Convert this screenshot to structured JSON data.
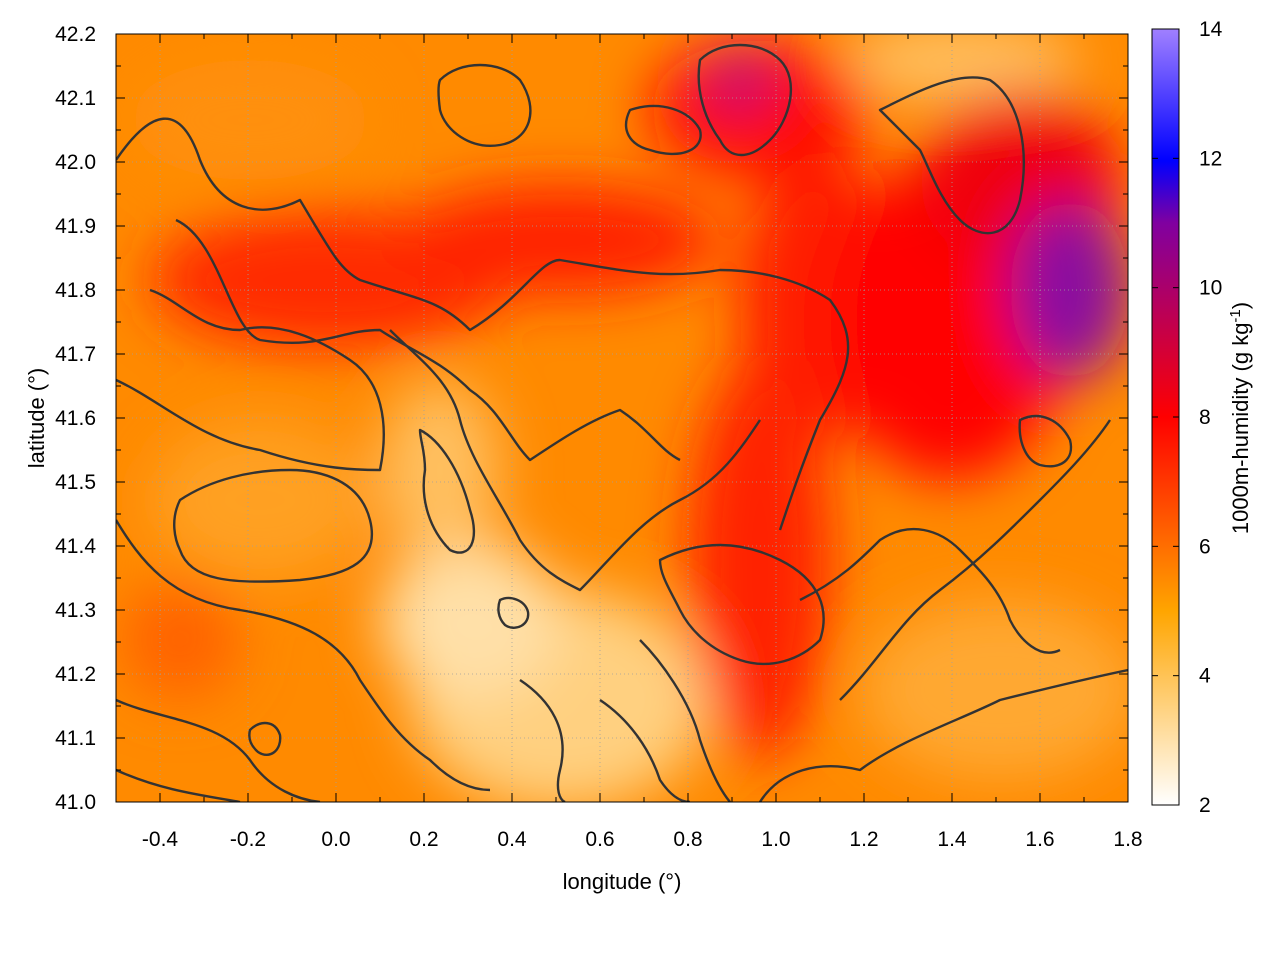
{
  "chart_data": {
    "type": "heatmap",
    "title": "",
    "xlabel": "longitude (°)",
    "ylabel": "latitude (°)",
    "xlim": [
      -0.5,
      1.8
    ],
    "ylim": [
      41.0,
      42.2
    ],
    "x_ticks": [
      -0.4,
      -0.2,
      0.0,
      0.2,
      0.4,
      0.6,
      0.8,
      1.0,
      1.2,
      1.4,
      1.6,
      1.8
    ],
    "y_ticks": [
      41.0,
      41.1,
      41.2,
      41.3,
      41.4,
      41.5,
      41.6,
      41.7,
      41.8,
      41.9,
      42.0,
      42.1,
      42.2
    ],
    "x_tick_labels": [
      "-0.4",
      "-0.2",
      "0.0",
      "0.2",
      "0.4",
      "0.6",
      "0.8",
      "1.0",
      "1.2",
      "1.4",
      "1.6",
      "1.8"
    ],
    "y_tick_labels": [
      "41.0",
      "41.1",
      "41.2",
      "41.3",
      "41.4",
      "41.5",
      "41.6",
      "41.7",
      "41.8",
      "41.9",
      "42.0",
      "42.1",
      "42.2"
    ],
    "colorbar": {
      "label_main": "1000m-humidity (g kg",
      "label_sup": "-1",
      "label_end": ")",
      "range": [
        2,
        14
      ],
      "ticks": [
        2,
        4,
        6,
        8,
        10,
        12,
        14
      ],
      "tick_labels": [
        "2",
        "4",
        "6",
        "8",
        "10",
        "12",
        "14"
      ],
      "palette": [
        "#ffffff",
        "#ffa500",
        "#ff0000",
        "#0000ff",
        "#a080ff"
      ]
    },
    "grid": true,
    "contours": true
  }
}
